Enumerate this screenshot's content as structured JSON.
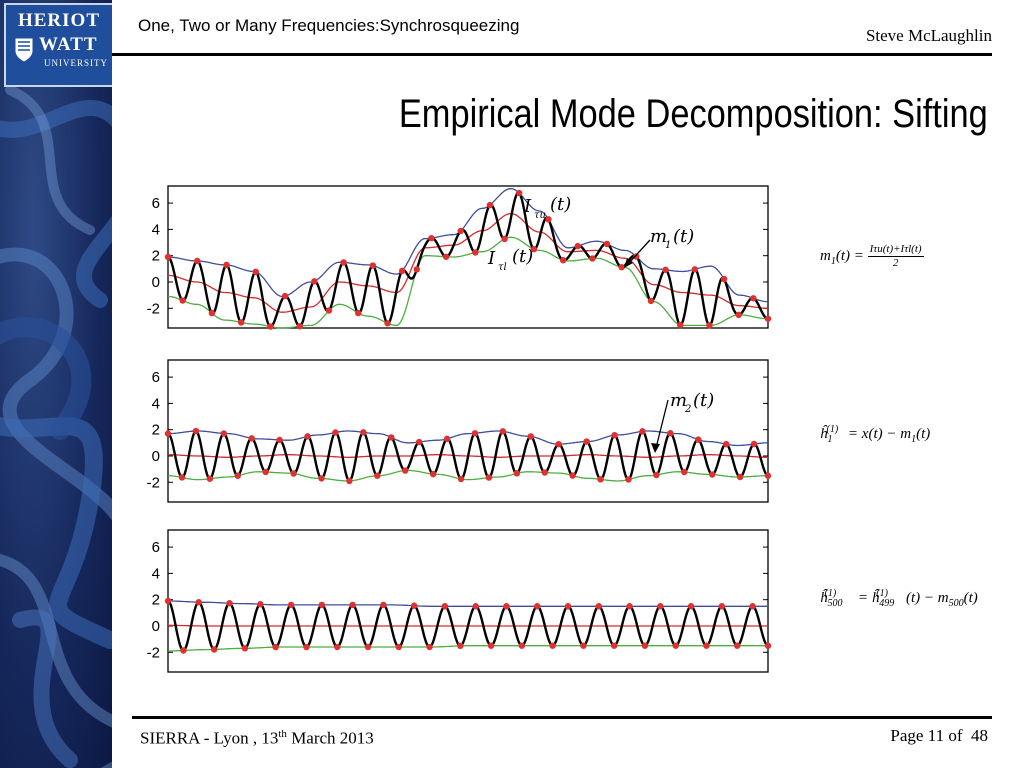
{
  "header": {
    "logo": {
      "line1": "HERIOT",
      "line2": "WATT",
      "line3": "UNIVERSITY"
    },
    "top_title": "One, Two or Many Frequencies:Synchrosqueezing",
    "author": "Steve McLaughlin",
    "slide_title": "Empirical Mode Decomposition: Sifting"
  },
  "panels": [
    {
      "yticks": [
        "6",
        "4",
        "2",
        "0",
        "-2"
      ],
      "annotations": {
        "upper": "I",
        "upper_sub": "τu",
        "upper_arg": "(t)",
        "lower": "I",
        "lower_sub": "τl",
        "lower_arg": "(t)",
        "mean": "m",
        "mean_sub": "1",
        "mean_arg": "(t)"
      },
      "formula": {
        "lhs": "m1(t) =",
        "numerator": "Iτu(t)+Iτl(t)",
        "denominator": "2"
      }
    },
    {
      "yticks": [
        "6",
        "4",
        "2",
        "0",
        "-2"
      ],
      "annotations": {
        "mean": "m",
        "mean_sub": "2",
        "mean_arg": "(t)"
      },
      "formula": {
        "text": "ĥ1(1) = x(t) − m1(t)"
      }
    },
    {
      "yticks": [
        "6",
        "4",
        "2",
        "0",
        "-2"
      ],
      "formula": {
        "text": "ĥ500(1) = ĥ499(1)(t) − m500(t)"
      }
    }
  ],
  "chart_data": [
    {
      "type": "line",
      "title": "",
      "xlabel": "",
      "ylabel": "",
      "ylim": [
        -3.5,
        7.3
      ],
      "yticks": [
        6,
        4,
        2,
        0,
        -2
      ],
      "series": [
        {
          "name": "",
          "color": "#000000",
          "values": "sifted signal (oscillation)"
        },
        {
          "name": "Iτu(t)",
          "color": "#3f4f9f",
          "values": [
            1.9,
            1.6,
            1.3,
            0.8,
            -1.1,
            0.0,
            1.5,
            1.3,
            0.6,
            3.3,
            3.6,
            5.6,
            7.1,
            5.4,
            2.6,
            3.1,
            2.4,
            1.0,
            0.8,
            1.2,
            -1.0,
            -1.5
          ]
        },
        {
          "name": "m1(t)",
          "color": "#d62a2a",
          "values": [
            0.5,
            0.0,
            -0.8,
            -1.2,
            -2.3,
            -1.9,
            0.0,
            -0.3,
            -0.8,
            2.6,
            2.8,
            3.9,
            5.2,
            3.8,
            2.3,
            2.4,
            1.8,
            -0.2,
            -0.8,
            -1.0,
            -1.8,
            -2.0
          ]
        },
        {
          "name": "Iτl(t)",
          "color": "#4caf3f",
          "values": [
            -1.1,
            -1.7,
            -2.9,
            -3.2,
            -3.5,
            -3.3,
            -1.7,
            -2.6,
            -3.3,
            2.0,
            1.9,
            2.3,
            3.4,
            2.4,
            1.6,
            1.8,
            1.1,
            -1.5,
            -3.3,
            -3.3,
            -2.5,
            -2.8
          ]
        }
      ]
    },
    {
      "type": "line",
      "title": "",
      "xlabel": "",
      "ylabel": "",
      "ylim": [
        -3.5,
        7.3
      ],
      "yticks": [
        6,
        4,
        2,
        0,
        -2
      ],
      "series": [
        {
          "name": "",
          "color": "#000000",
          "values": "sifted signal (oscillation)"
        },
        {
          "name": "",
          "color": "#3f4f9f",
          "values": [
            1.7,
            1.9,
            1.7,
            1.3,
            1.2,
            1.6,
            1.9,
            1.7,
            1.0,
            1.2,
            1.7,
            1.9,
            1.5,
            0.9,
            1.1,
            1.6,
            1.9,
            1.7,
            1.1,
            0.8,
            1.0
          ]
        },
        {
          "name": "m2(t)",
          "color": "#d62a2a",
          "values": [
            0.1,
            0.0,
            -0.1,
            0.0,
            0.1,
            0.0,
            -0.1,
            0.0,
            0.0,
            0.1,
            0.0,
            -0.1,
            0.0,
            0.0,
            0.1,
            0.0,
            -0.1,
            0.0,
            0.1,
            0.0,
            -0.1
          ]
        },
        {
          "name": "",
          "color": "#4caf3f",
          "values": [
            -1.5,
            -1.8,
            -1.6,
            -1.2,
            -1.3,
            -1.7,
            -1.9,
            -1.5,
            -1.1,
            -1.4,
            -1.8,
            -1.6,
            -1.2,
            -1.3,
            -1.7,
            -1.9,
            -1.5,
            -1.2,
            -1.4,
            -1.6,
            -1.5
          ]
        }
      ]
    },
    {
      "type": "line",
      "title": "",
      "xlabel": "",
      "ylabel": "",
      "ylim": [
        -3.5,
        7.3
      ],
      "yticks": [
        6,
        4,
        2,
        0,
        -2
      ],
      "series": [
        {
          "name": "",
          "color": "#000000",
          "values": "sifted signal (oscillation)"
        },
        {
          "name": "",
          "color": "#3f4f9f",
          "values": [
            1.9,
            1.8,
            1.7,
            1.6,
            1.6,
            1.6,
            1.6,
            1.5,
            1.5,
            1.5,
            1.5,
            1.5,
            1.5,
            1.5,
            1.5,
            1.5,
            1.5
          ]
        },
        {
          "name": "",
          "color": "#d62a2a",
          "values": [
            0.05,
            0.0,
            0.0,
            0.0,
            0.0,
            0.0,
            0.0,
            0.0,
            0.0,
            0.0,
            0.0,
            0.0,
            0.0,
            0.0,
            0.0,
            0.0,
            0.0
          ]
        },
        {
          "name": "",
          "color": "#4caf3f",
          "values": [
            -1.9,
            -1.8,
            -1.7,
            -1.6,
            -1.6,
            -1.6,
            -1.6,
            -1.6,
            -1.5,
            -1.5,
            -1.5,
            -1.5,
            -1.5,
            -1.5,
            -1.5,
            -1.5,
            -1.5
          ]
        }
      ]
    }
  ],
  "footer": {
    "event": "SIERRA - Lyon , 13",
    "event_sup": "th",
    "event_rest": " March 2013",
    "page_label": "Page 11 of",
    "page_total": "48"
  }
}
